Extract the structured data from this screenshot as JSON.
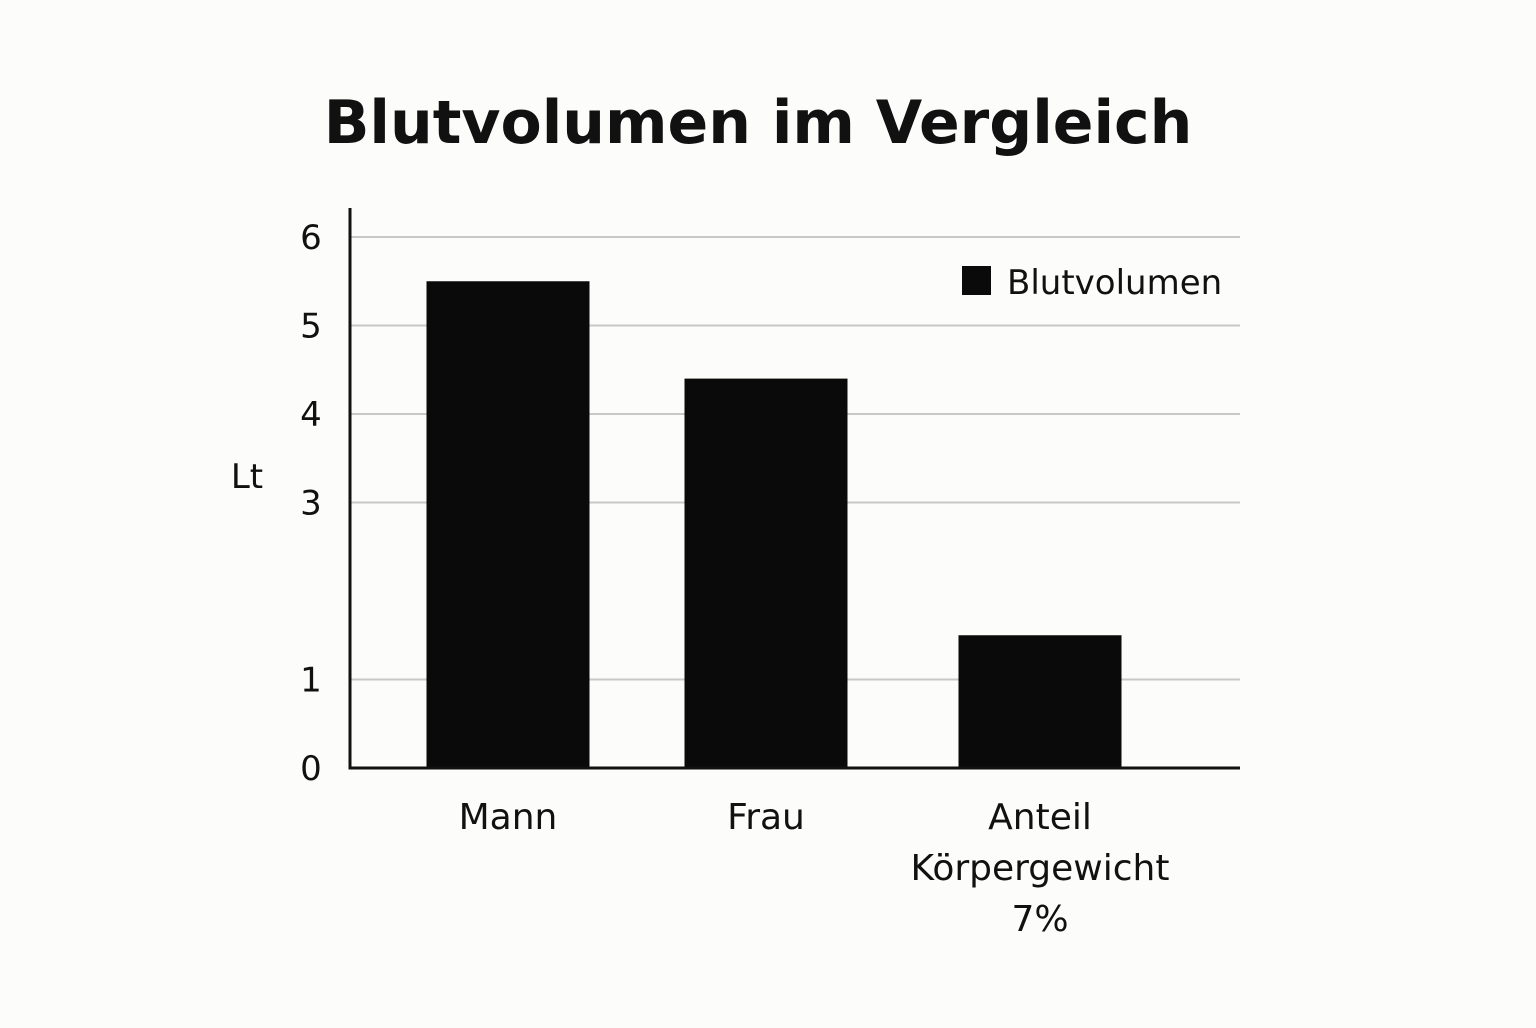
{
  "chart_data": {
    "type": "bar",
    "title": "Blutvolumen im Vergleich",
    "xlabel": "",
    "ylabel": "Lt",
    "categories": [
      "Mann",
      "Frau",
      "Anteil Körpergewicht 7%"
    ],
    "category_lines": [
      [
        "Mann"
      ],
      [
        "Frau"
      ],
      [
        "Anteil",
        "Körpergewicht",
        "7%"
      ]
    ],
    "series": [
      {
        "name": "Blutvolumen",
        "values": [
          5.5,
          4.4,
          1.5
        ],
        "color": "#0a0a0a"
      }
    ],
    "y_ticks": [
      0,
      1,
      3,
      4,
      5,
      6
    ],
    "ylim": [
      0,
      6
    ],
    "grid": true,
    "grid_color": "#c8c8c8",
    "legend": "top-right",
    "background": "#fcfcfa"
  }
}
